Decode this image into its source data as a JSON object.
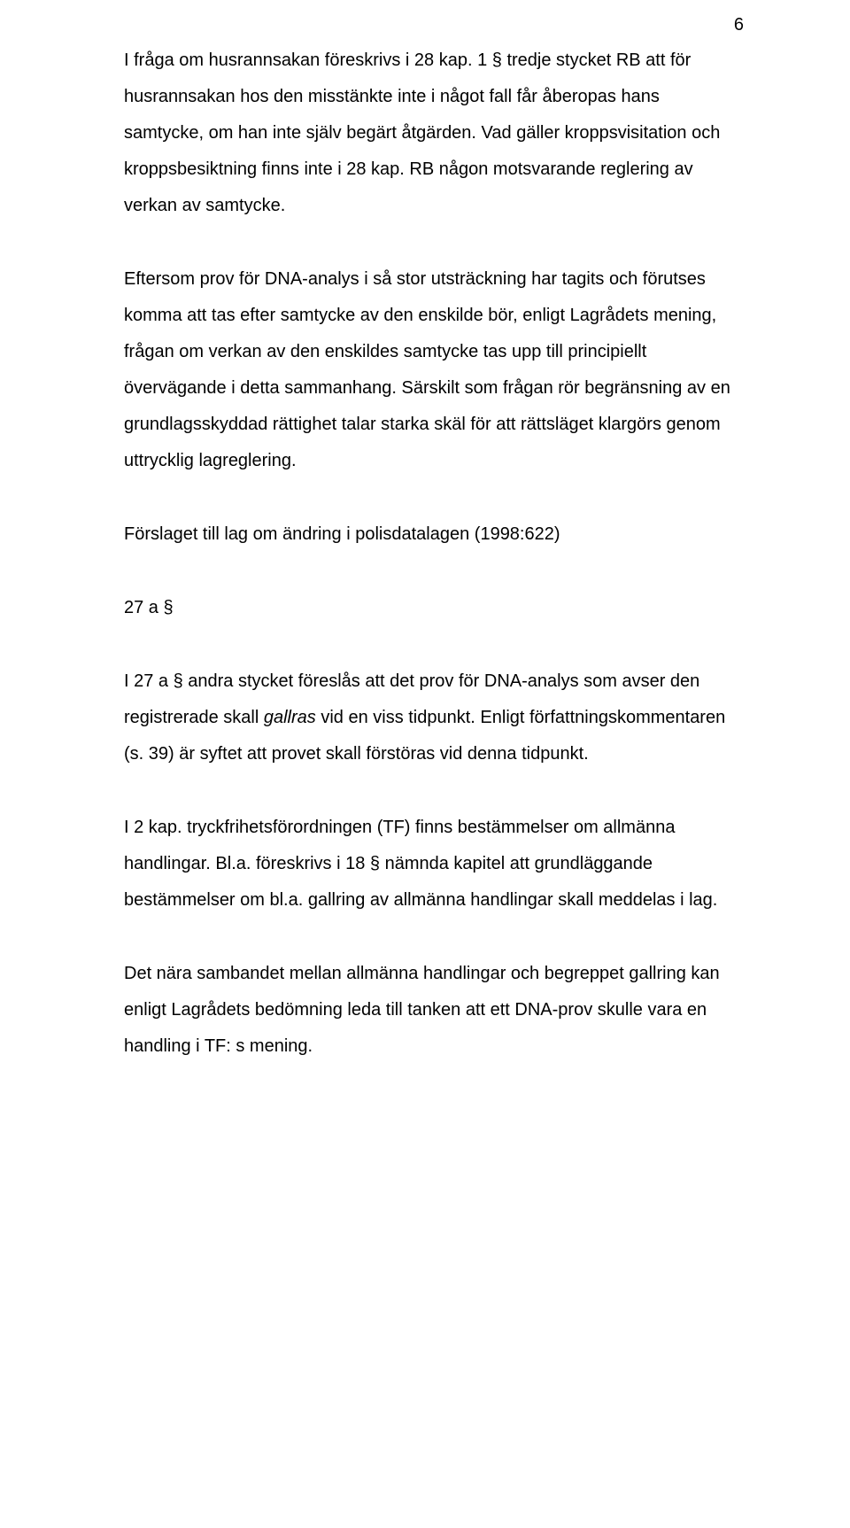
{
  "page_number": "6",
  "paragraphs": {
    "p1_a": "I fråga om husrannsakan föreskrivs i 28 kap. 1 § tredje stycket RB att för husrannsakan hos den misstänkte inte i något fall får åberopas hans samtycke, om han inte själv begärt åtgärden. Vad gäller kroppsvisitation och kroppsbesiktning finns inte i 28 kap. RB någon motsvarande reglering av verkan av samtycke.",
    "p2": "Eftersom prov för DNA-analys i så stor utsträckning har tagits och förutses komma att tas efter samtycke av den enskilde bör, enligt Lagrådets mening, frågan om verkan av den enskildes samtycke tas upp till principiellt övervägande i detta sammanhang. Särskilt som frågan rör begränsning av en grundlagsskyddad rättighet talar starka skäl för att rättsläget klargörs genom uttrycklig lagreglering.",
    "p3": "Förslaget till lag om ändring i polisdatalagen (1998:622)",
    "p4": "27 a §",
    "p5_a": "I  27 a § andra stycket föreslås att det prov för DNA-analys som avser den registrerade skall ",
    "p5_italic": "gallras",
    "p5_b": " vid en viss tidpunkt. Enligt författningskommentaren (s. 39) är syftet att provet skall förstöras vid denna tidpunkt.",
    "p6": "I 2 kap. tryckfrihetsförordningen (TF) finns bestämmelser om allmänna handlingar. Bl.a. föreskrivs i 18 § nämnda kapitel att grundläggande bestämmelser om bl.a. gallring av allmänna handlingar skall meddelas i lag.",
    "p7": "Det nära sambandet mellan allmänna handlingar och begreppet gallring kan enligt Lagrådets bedömning leda till tanken att ett DNA-prov skulle vara en handling i TF: s mening."
  }
}
